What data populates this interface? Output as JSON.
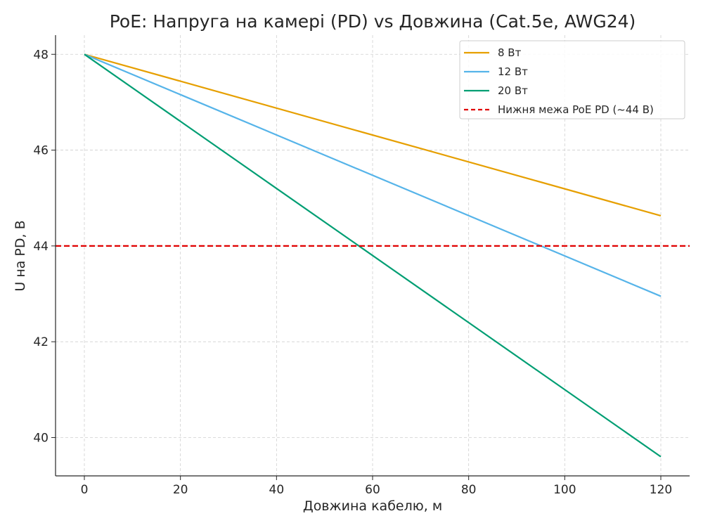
{
  "chart_data": {
    "type": "line",
    "title": "PoE: Напруга на камері (PD) vs Довжина (Cat.5e, AWG24)",
    "xlabel": "Довжина кабелю, м",
    "ylabel": "U на PD, В",
    "xlim": [
      -6,
      126
    ],
    "ylim": [
      39.2,
      48.4
    ],
    "xticks": [
      0,
      20,
      40,
      60,
      80,
      100,
      120
    ],
    "yticks": [
      40,
      42,
      44,
      46,
      48
    ],
    "grid": true,
    "legend_position": "top-right",
    "series": [
      {
        "name": "8 Вт",
        "color": "#E69F00",
        "style": "solid",
        "x": [
          0,
          120
        ],
        "y": [
          48.0,
          44.63
        ]
      },
      {
        "name": "12 Вт",
        "color": "#56B4E9",
        "style": "solid",
        "x": [
          0,
          120
        ],
        "y": [
          48.0,
          42.95
        ]
      },
      {
        "name": "20 Вт",
        "color": "#009E73",
        "style": "solid",
        "x": [
          0,
          120
        ],
        "y": [
          48.0,
          39.6
        ]
      }
    ],
    "threshold": {
      "name": "Нижня межа PoE PD (~44 В)",
      "color": "#E00000",
      "style": "dashed",
      "y": 44
    }
  }
}
